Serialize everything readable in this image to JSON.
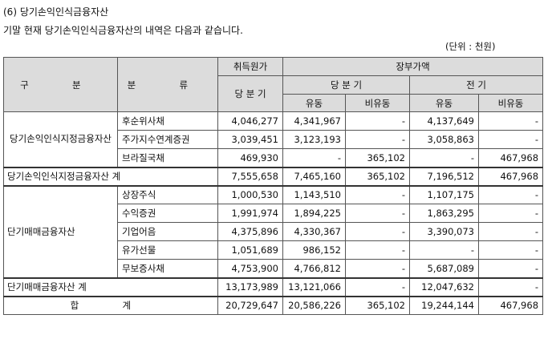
{
  "heading": "(6) 당기손익인식금융자산",
  "intro": "기말 현재 당기손익인식금융자산의 내역은 다음과 같습니다.",
  "unit": "(단위 : 천원)",
  "header": {
    "category": "구 분",
    "classification": "분 류",
    "acquisition_cost": "취득원가",
    "book_value": "장부가액",
    "current_period": "당 분 기",
    "prior_period": "전 기",
    "current_label": "당 분 기",
    "current": "유동",
    "non_current": "비유동"
  },
  "groups": [
    {
      "name": "당기손익인식지정금융자산",
      "rows": [
        {
          "item": "후순위사채",
          "cost": "4,046,277",
          "cur_c": "4,341,967",
          "cur_nc": "-",
          "pri_c": "4,137,649",
          "pri_nc": "-"
        },
        {
          "item": "주가지수연계증권",
          "cost": "3,039,451",
          "cur_c": "3,123,193",
          "cur_nc": "-",
          "pri_c": "3,058,863",
          "pri_nc": "-"
        },
        {
          "item": "브라질국채",
          "cost": "469,930",
          "cur_c": "-",
          "cur_nc": "365,102",
          "pri_c": "-",
          "pri_nc": "467,968"
        }
      ],
      "subtotal": {
        "label": "당기손익인식지정금융자산 계",
        "cost": "7,555,658",
        "cur_c": "7,465,160",
        "cur_nc": "365,102",
        "pri_c": "7,196,512",
        "pri_nc": "467,968"
      }
    },
    {
      "name": "단기매매금융자산",
      "rows": [
        {
          "item": "상장주식",
          "cost": "1,000,530",
          "cur_c": "1,143,510",
          "cur_nc": "-",
          "pri_c": "1,107,175",
          "pri_nc": "-"
        },
        {
          "item": "수익증권",
          "cost": "1,991,974",
          "cur_c": "1,894,225",
          "cur_nc": "-",
          "pri_c": "1,863,295",
          "pri_nc": "-"
        },
        {
          "item": "기업어음",
          "cost": "4,375,896",
          "cur_c": "4,330,367",
          "cur_nc": "-",
          "pri_c": "3,390,073",
          "pri_nc": "-"
        },
        {
          "item": "유가선물",
          "cost": "1,051,689",
          "cur_c": "986,152",
          "cur_nc": "-",
          "pri_c": "-",
          "pri_nc": "-"
        },
        {
          "item": "무보증사채",
          "cost": "4,753,900",
          "cur_c": "4,766,812",
          "cur_nc": "-",
          "pri_c": "5,687,089",
          "pri_nc": "-"
        }
      ],
      "subtotal": {
        "label": "단기매매금융자산 계",
        "cost": "13,173,989",
        "cur_c": "13,121,066",
        "cur_nc": "-",
        "pri_c": "12,047,632",
        "pri_nc": "-"
      }
    }
  ],
  "total": {
    "label": "합 계",
    "cost": "20,729,647",
    "cur_c": "20,586,226",
    "cur_nc": "365,102",
    "pri_c": "19,244,144",
    "pri_nc": "467,968"
  }
}
